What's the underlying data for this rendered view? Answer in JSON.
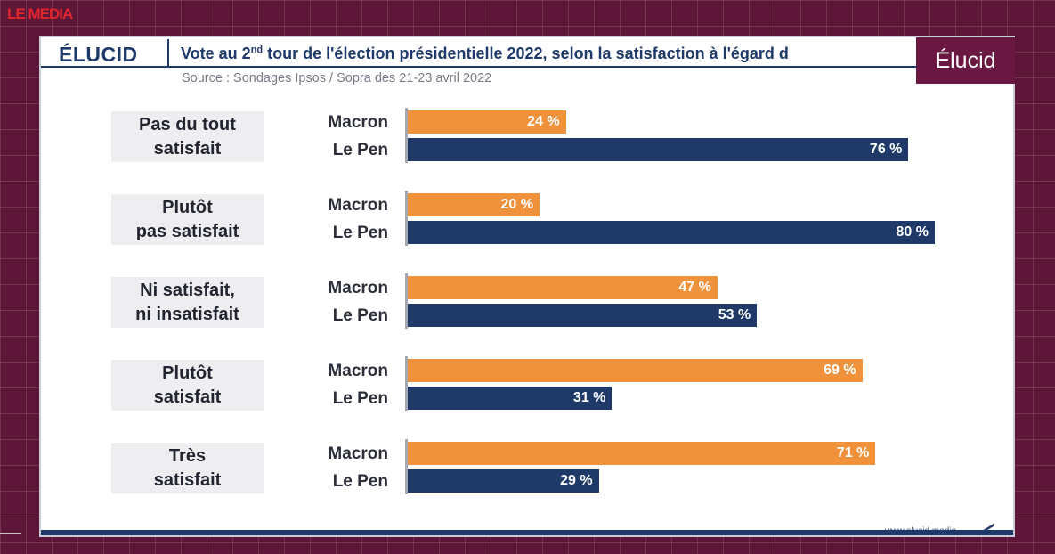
{
  "corner_logo": "LE MEDIA",
  "brand": "ÉLUCID",
  "title_main": "Vote au 2",
  "title_sup": "nd",
  "title_rest": " tour de l'élection présidentielle 2022, selon la satisfaction à l'égard d",
  "source": "Source : Sondages Ipsos / Sopra des 21-23 avril 2022",
  "badge": "Élucid",
  "footer_url": "www.elucid.media",
  "colors": {
    "macron": "#f0913b",
    "le_pen": "#1f3a68",
    "badge": "#6a1841",
    "background": "#5e1638"
  },
  "chart_data": {
    "type": "bar",
    "orientation": "horizontal",
    "unit": "%",
    "xlim": [
      0,
      100
    ],
    "categories": [
      [
        "Pas du tout",
        "satisfait"
      ],
      [
        "Plutôt",
        "pas satisfait"
      ],
      [
        "Ni satisfait,",
        "ni insatisfait"
      ],
      [
        "Plutôt",
        "satisfait"
      ],
      [
        "Très",
        "satisfait"
      ]
    ],
    "series": [
      {
        "name": "Macron",
        "values": [
          24,
          20,
          47,
          69,
          71
        ],
        "labels": [
          "24 %",
          "20 %",
          "47 %",
          "69 %",
          "71 %"
        ]
      },
      {
        "name": "Le Pen",
        "values": [
          76,
          80,
          53,
          31,
          29
        ],
        "labels": [
          "76 %",
          "80 %",
          "53 %",
          "31 %",
          "29 %"
        ]
      }
    ]
  }
}
